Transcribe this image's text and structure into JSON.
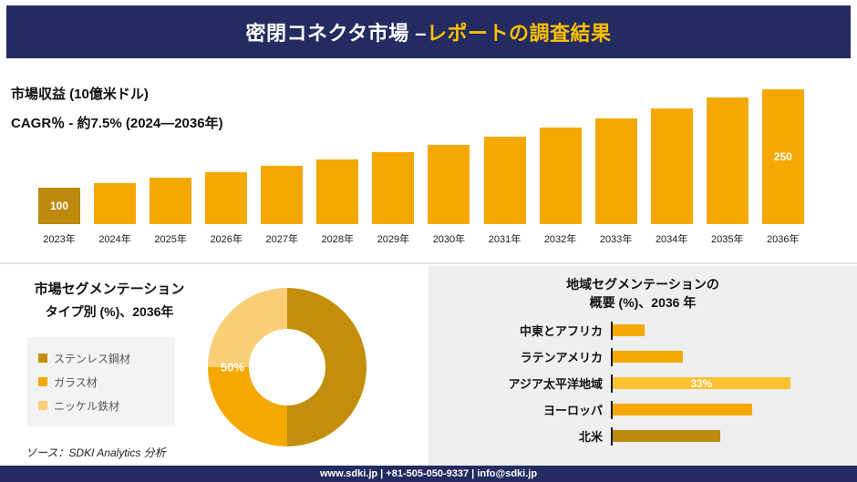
{
  "header": {
    "title_white": "密閉コネクタ市場 –",
    "title_gold": "レポートの調査結果"
  },
  "colors": {
    "navy": "#232B60",
    "title_gold": "#FFC000",
    "bar_gold": "#F5A802",
    "dark_gold": "#BD8A0E",
    "pale_gold": "#F9CE76",
    "panel_gray": "#EFEFEF"
  },
  "chart_data": [
    {
      "type": "bar",
      "title": "市場収益 (10億米ドル)",
      "subtitle": "CAGR％ - 約7.5% (2024―2036年)",
      "categories": [
        "2023年",
        "2024年",
        "2025年",
        "2026年",
        "2027年",
        "2028年",
        "2029年",
        "2030年",
        "2031年",
        "2032年",
        "2033年",
        "2034年",
        "2035年",
        "2036年"
      ],
      "values": [
        100,
        107.5,
        115.6,
        124.2,
        133.5,
        143.5,
        154.3,
        165.9,
        178.3,
        191.7,
        206.1,
        221.5,
        238.1,
        250
      ],
      "first_label": "100",
      "last_label": "250",
      "bar_color": "#F5A802",
      "first_bar_color": "#BD8A0E",
      "ylim": [
        100,
        250
      ],
      "grid": "off",
      "legend": "none"
    },
    {
      "type": "pie",
      "title_line1": "市場セグメンテーション",
      "title_line2": "タイプ別 (%)、2036年",
      "center_label": "50%",
      "slices": [
        {
          "label": "ステンレス鋼材",
          "value": 50,
          "color": "#C28E0C"
        },
        {
          "label": "ガラス材",
          "value": 25,
          "color": "#F5A802"
        },
        {
          "label": "ニッケル鉄材",
          "value": 25,
          "color": "#F9CE76"
        }
      ],
      "legend": "left"
    },
    {
      "type": "bar-horizontal",
      "title_line1": "地域セグメンテーションの",
      "title_line2": "概要 (%)、2036 年",
      "categories": [
        "中東とアフリカ",
        "ラテンアメリカ",
        "アジア太平洋地域",
        "ヨーロッパ",
        "北米"
      ],
      "values": [
        6,
        13,
        33,
        26,
        20
      ],
      "bar_labels": [
        "",
        "",
        "33%",
        "",
        ""
      ],
      "colors": [
        "#F5A802",
        "#F5A802",
        "#FFC12E",
        "#F5A802",
        "#BD8A0E"
      ],
      "xlim": [
        0,
        40
      ],
      "grid": "off",
      "legend": "none"
    }
  ],
  "source": {
    "text": "ソース：SDKI Analytics 分析"
  },
  "footer": {
    "text": "www.sdki.jp | +81-505-050-9337 | info@sdki.jp"
  }
}
